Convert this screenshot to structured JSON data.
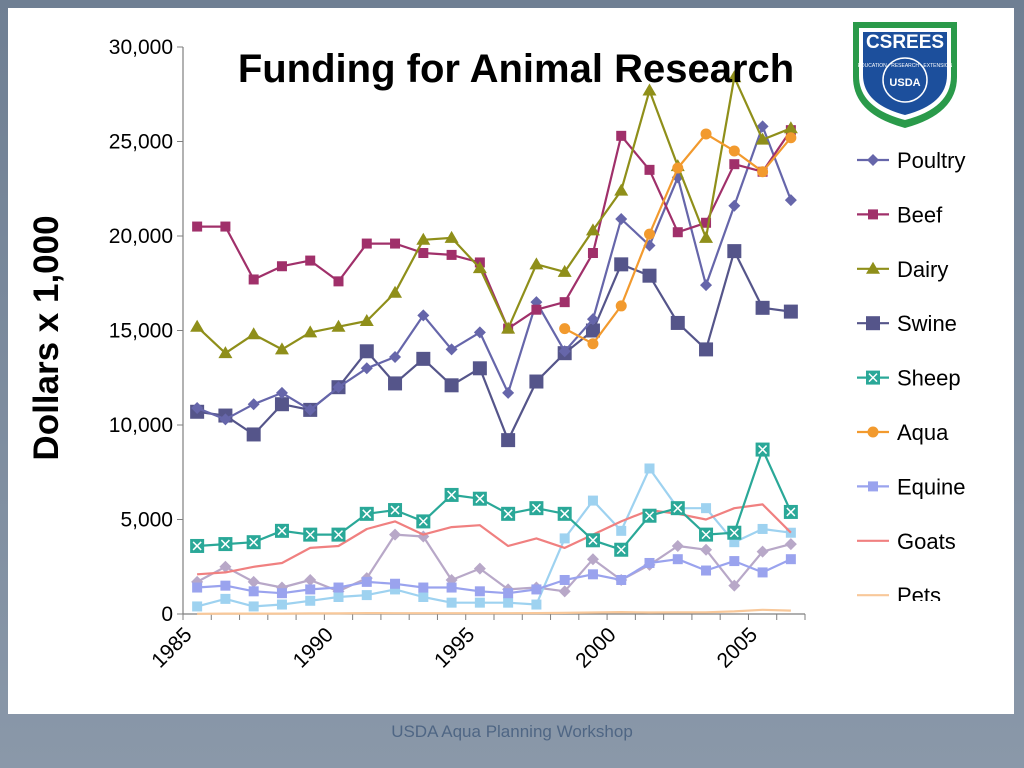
{
  "footer": "USDA Aqua Planning Workshop",
  "logo": {
    "name": "CSREES",
    "ring_text": "EDUCATION · RESEARCH · EXTENSION",
    "center": "USDA"
  },
  "chart_data": {
    "type": "line",
    "title": "Funding for Animal Research",
    "xlabel": "",
    "ylabel": "Dollars x 1,000",
    "xlim": [
      1985,
      2007
    ],
    "ylim": [
      0,
      30000
    ],
    "x_ticks": [
      1985,
      1990,
      1995,
      2000,
      2005
    ],
    "y_ticks": [
      0,
      5000,
      10000,
      15000,
      20000,
      25000,
      30000
    ],
    "y_tick_labels": [
      "0",
      "5,000",
      "10,000",
      "15,000",
      "20,000",
      "25,000",
      "30,000"
    ],
    "x_tick_labels": [
      "1985",
      "1990",
      "1995",
      "2000",
      "2005"
    ],
    "grid": false,
    "legend_position": "right",
    "x": [
      1985.5,
      1986.5,
      1987.5,
      1988.5,
      1989.5,
      1990.5,
      1991.5,
      1992.5,
      1993.5,
      1994.5,
      1995.5,
      1996.5,
      1997.5,
      1998.5,
      1999.5,
      2000.5,
      2001.5,
      2002.5,
      2003.5,
      2004.5,
      2005.5,
      2006.5
    ],
    "series": [
      {
        "name": "Poultry",
        "color": "#6666aa",
        "marker": "diamond",
        "legend": true,
        "values": [
          10900,
          10300,
          11100,
          11700,
          10800,
          12000,
          13000,
          13600,
          15800,
          14000,
          14900,
          11700,
          16500,
          13900,
          15600,
          20900,
          19500,
          23100,
          17400,
          21600,
          25800,
          21900
        ]
      },
      {
        "name": "Beef",
        "color": "#a0306a",
        "marker": "square",
        "legend": true,
        "values": [
          20500,
          20500,
          17700,
          18400,
          18700,
          17600,
          19600,
          19600,
          19100,
          19000,
          18600,
          15100,
          16100,
          16500,
          19100,
          25300,
          23500,
          20200,
          20700,
          23800,
          23400,
          25600
        ]
      },
      {
        "name": "Dairy",
        "color": "#8f8f1a",
        "marker": "triangle",
        "legend": true,
        "values": [
          15200,
          13800,
          14800,
          14000,
          14900,
          15200,
          15500,
          17000,
          19800,
          19900,
          18300,
          15100,
          18500,
          18100,
          20300,
          22400,
          27700,
          23700,
          19900,
          28400,
          25100,
          25700
        ]
      },
      {
        "name": "Swine",
        "color": "#55558a",
        "marker": "bigsquare",
        "legend": true,
        "values": [
          10700,
          10500,
          9500,
          11100,
          10800,
          12000,
          13900,
          12200,
          13500,
          12100,
          13000,
          9200,
          12300,
          13800,
          15000,
          18500,
          17900,
          15400,
          14000,
          19200,
          16200,
          16000
        ]
      },
      {
        "name": "Sheep",
        "color": "#2aa898",
        "marker": "xsquare",
        "legend": true,
        "values": [
          3600,
          3700,
          3800,
          4400,
          4200,
          4200,
          5300,
          5500,
          4900,
          6300,
          6100,
          5300,
          5600,
          5300,
          3900,
          3400,
          5200,
          5600,
          4200,
          4300,
          8700,
          5400
        ]
      },
      {
        "name": "Aqua",
        "color": "#f29a2e",
        "marker": "circle",
        "legend": true,
        "values": [
          null,
          null,
          null,
          null,
          null,
          null,
          null,
          null,
          null,
          null,
          null,
          null,
          null,
          15100,
          14300,
          16300,
          20100,
          23600,
          25400,
          24500,
          23400,
          25200
        ]
      },
      {
        "name": "Equine",
        "color": "#9aa3ee",
        "marker": "square",
        "legend": true,
        "values": [
          1400,
          1500,
          1200,
          1100,
          1300,
          1400,
          1700,
          1600,
          1400,
          1400,
          1200,
          1100,
          1300,
          1800,
          2100,
          1800,
          2700,
          2900,
          2300,
          2800,
          2200,
          2900
        ]
      },
      {
        "name": "Goats",
        "color": "#f08080",
        "marker": "none",
        "legend": true,
        "values": [
          2100,
          2200,
          2500,
          2700,
          3500,
          3600,
          4500,
          4900,
          4200,
          4600,
          4700,
          3600,
          4000,
          3500,
          4200,
          4900,
          5500,
          5300,
          5000,
          5600,
          5800,
          4300
        ]
      },
      {
        "name": "Pets",
        "color": "#f8c89a",
        "marker": "none",
        "legend": true,
        "values": [
          10,
          20,
          20,
          20,
          30,
          30,
          50,
          40,
          40,
          40,
          40,
          40,
          50,
          60,
          80,
          100,
          80,
          90,
          90,
          140,
          220,
          180
        ]
      },
      {
        "name": "",
        "color": "#9ed2f0",
        "marker": "square",
        "legend": false,
        "values": [
          400,
          800,
          400,
          500,
          700,
          900,
          1000,
          1300,
          900,
          600,
          600,
          600,
          500,
          4000,
          6000,
          4400,
          7700,
          5600,
          5600,
          3800,
          4500,
          4300
        ]
      },
      {
        "name": "",
        "color": "#b8a8c8",
        "marker": "diamond",
        "legend": false,
        "values": [
          1700,
          2500,
          1700,
          1400,
          1800,
          1200,
          1900,
          4200,
          4100,
          1800,
          2400,
          1300,
          1400,
          1200,
          2900,
          1800,
          2600,
          3600,
          3400,
          1500,
          3300,
          3700
        ]
      }
    ]
  }
}
